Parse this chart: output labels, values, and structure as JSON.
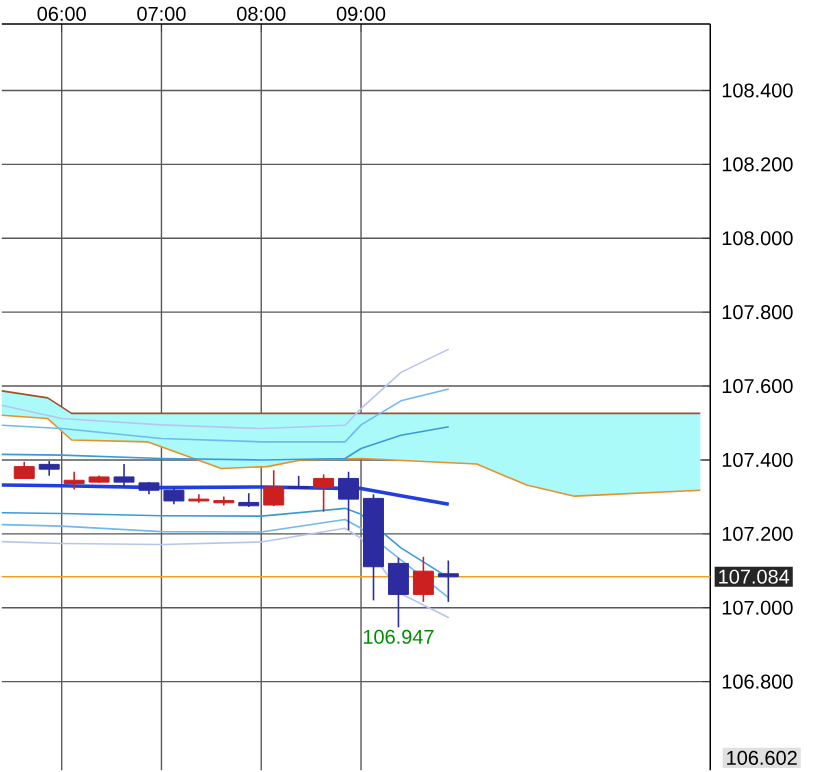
{
  "chart_data": {
    "type": "candlestick",
    "x": [
      5.625,
      5.875,
      6.125,
      6.375,
      6.625,
      6.875,
      7.125,
      7.375,
      7.625,
      7.875,
      8.125,
      8.375,
      8.625,
      8.875,
      9.125,
      9.375,
      9.625,
      9.875
    ],
    "ohlc": [
      [
        107.35,
        107.395,
        107.35,
        107.382
      ],
      [
        107.388,
        107.397,
        107.357,
        107.375
      ],
      [
        107.336,
        107.368,
        107.32,
        107.345
      ],
      [
        107.34,
        107.358,
        107.338,
        107.354
      ],
      [
        107.354,
        107.389,
        107.327,
        107.34
      ],
      [
        107.338,
        107.34,
        107.307,
        107.318
      ],
      [
        107.318,
        107.325,
        107.28,
        107.289
      ],
      [
        107.289,
        107.307,
        107.284,
        107.294
      ],
      [
        107.284,
        107.301,
        107.277,
        107.29
      ],
      [
        107.285,
        107.31,
        107.273,
        107.276
      ],
      [
        107.278,
        107.372,
        107.275,
        107.327
      ],
      [
        107.328,
        107.357,
        107.323,
        107.323
      ],
      [
        107.325,
        107.361,
        107.26,
        107.35
      ],
      [
        107.35,
        107.368,
        107.21,
        107.294
      ],
      [
        107.296,
        107.307,
        107.02,
        107.111
      ],
      [
        107.12,
        107.135,
        106.947,
        107.036
      ],
      [
        107.036,
        107.138,
        107.016,
        107.099
      ],
      [
        107.092,
        107.128,
        107.016,
        107.084
      ]
    ],
    "colors": [
      "#cc2020",
      "#2c2ca0",
      "#cc2020",
      "#cc2020",
      "#2c2ca0",
      "#2c2ca0",
      "#2c2ca0",
      "#cc2020",
      "#cc2020",
      "#2c2ca0",
      "#cc2020",
      "#2c2ca0",
      "#cc2020",
      "#2c2ca0",
      "#2c2ca0",
      "#2c2ca0",
      "#cc2020",
      "#2c2ca0"
    ],
    "series": [
      {
        "type": "line",
        "color": "#a0522d",
        "x": [
          5.4,
          5.86,
          6.1,
          6.86,
          7.6,
          8.06,
          8.4,
          9.0,
          10.16,
          10.66,
          11.14,
          12.4
        ],
        "values": [
          107.587,
          107.568,
          107.526,
          107.526,
          107.526,
          107.526,
          107.526,
          107.526,
          107.526,
          107.526,
          107.526,
          107.526
        ],
        "lower": [
          107.521,
          107.512,
          107.454,
          107.449,
          107.377,
          107.382,
          107.4,
          107.404,
          107.389,
          107.332,
          107.302,
          107.318
        ],
        "upper": [
          107.587,
          107.568,
          107.526,
          107.526,
          107.526,
          107.526,
          107.526,
          107.526,
          107.526,
          107.526,
          107.526,
          107.526
        ]
      },
      {
        "type": "line",
        "color": "#e8902a",
        "x": [
          5.4,
          5.86,
          6.1,
          6.86,
          7.6,
          8.06,
          8.4,
          9.0,
          10.16,
          10.66,
          11.14,
          12.4
        ],
        "values": [
          107.521,
          107.512,
          107.454,
          107.449,
          107.377,
          107.382,
          107.4,
          107.404,
          107.389,
          107.332,
          107.302,
          107.318
        ]
      },
      {
        "type": "line",
        "color": "#b8c4f0",
        "x": [
          5.4,
          6.0,
          7.0,
          8.0,
          8.84,
          9.0,
          9.4,
          9.88
        ],
        "values": [
          107.548,
          107.512,
          107.495,
          107.485,
          107.494,
          107.539,
          107.637,
          107.7
        ]
      },
      {
        "type": "line",
        "color": "#70b8ee",
        "x": [
          5.4,
          6.0,
          7.0,
          8.0,
          8.84,
          9.0,
          9.4,
          9.88
        ],
        "values": [
          107.494,
          107.485,
          107.458,
          107.449,
          107.449,
          107.495,
          107.56,
          107.592
        ]
      },
      {
        "type": "line",
        "color": "#3a9ad8",
        "x": [
          5.4,
          6.0,
          7.0,
          8.0,
          8.84,
          9.0,
          9.4,
          9.88
        ],
        "values": [
          107.415,
          107.413,
          107.404,
          107.4,
          107.404,
          107.431,
          107.467,
          107.49
        ]
      },
      {
        "type": "line",
        "color": "#3a9ad8",
        "x": [
          5.4,
          6.0,
          7.0,
          8.0,
          8.84,
          9.0,
          9.4,
          9.88
        ],
        "values": [
          107.257,
          107.255,
          107.249,
          107.248,
          107.269,
          107.253,
          107.162,
          107.081
        ]
      },
      {
        "type": "line",
        "color": "#70b8ee",
        "x": [
          5.4,
          6.0,
          7.0,
          8.0,
          8.84,
          9.0,
          9.4,
          9.88
        ],
        "values": [
          107.225,
          107.221,
          107.206,
          107.205,
          107.239,
          107.215,
          null,
          107.027
        ]
      },
      {
        "type": "line",
        "color": "#b8c4f0",
        "x": [
          5.4,
          6.0,
          7.0,
          8.0,
          8.84,
          9.0,
          9.4,
          9.88
        ],
        "values": [
          107.179,
          107.174,
          107.171,
          107.178,
          107.215,
          107.188,
          107.038,
          106.973
        ]
      },
      {
        "type": "line",
        "color": "#1f3fe0",
        "x": [
          5.4,
          6.0,
          7.0,
          8.0,
          8.84,
          9.0,
          9.4,
          9.88
        ],
        "values": [
          107.332,
          107.33,
          107.325,
          107.327,
          107.323,
          107.323,
          107.303,
          107.28
        ]
      }
    ],
    "xlim": [
      5.4,
      12.5
    ],
    "xticks": [
      {
        "value": 6,
        "label": "06:00"
      },
      {
        "value": 7,
        "label": "07:00"
      },
      {
        "value": 8,
        "label": "08:00"
      },
      {
        "value": 9,
        "label": "09:00"
      }
    ],
    "ylim": [
      106.56,
      108.58
    ],
    "yticks": [
      {
        "value": 106.8,
        "label": "106.800"
      },
      {
        "value": 107.0,
        "label": "107.000"
      },
      {
        "value": 107.2,
        "label": "107.200"
      },
      {
        "value": 107.4,
        "label": "107.400"
      },
      {
        "value": 107.6,
        "label": "107.600"
      },
      {
        "value": 107.8,
        "label": "107.800"
      },
      {
        "value": 108.0,
        "label": "108.000"
      },
      {
        "value": 108.2,
        "label": "108.200"
      },
      {
        "value": 108.4,
        "label": "108.400"
      }
    ],
    "grid": true,
    "ref_lines": [
      {
        "axis": "y",
        "value": 107.084,
        "label": "107.084",
        "color": "#f0a020"
      }
    ],
    "annotations": [
      {
        "text": "106.947",
        "x": 9.375,
        "y": 106.947
      },
      "106.602"
    ]
  }
}
